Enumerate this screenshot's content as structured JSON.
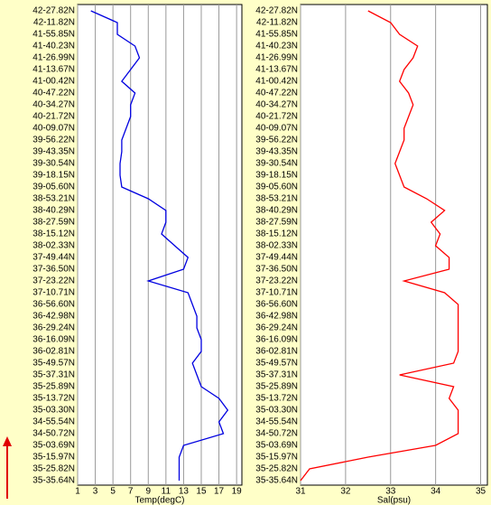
{
  "chart_data": [
    {
      "type": "line",
      "xlabel": "Temp(degC)",
      "categories": [
        "42-27.82N",
        "42-11.82N",
        "41-55.85N",
        "41-40.23N",
        "41-26.99N",
        "41-13.67N",
        "41-00.42N",
        "40-47.22N",
        "40-34.27N",
        "40-21.72N",
        "40-09.07N",
        "39-56.22N",
        "39-43.35N",
        "39-30.54N",
        "39-18.15N",
        "39-05.60N",
        "38-53.21N",
        "38-40.29N",
        "38-27.59N",
        "38-15.12N",
        "38-02.33N",
        "37-49.44N",
        "37-36.50N",
        "37-23.22N",
        "37-10.71N",
        "36-56.60N",
        "36-42.98N",
        "36-29.24N",
        "36-16.09N",
        "36-02.81N",
        "35-49.57N",
        "35-37.31N",
        "35-25.89N",
        "35-13.72N",
        "35-03.30N",
        "34-55.54N",
        "34-50.72N",
        "35-03.69N",
        "35-15.97N",
        "35-25.82N",
        "35-35.64N"
      ],
      "series": [
        {
          "name": "Temp",
          "color": "#0000e0",
          "values": [
            2.5,
            5.5,
            5.5,
            7.5,
            8,
            7,
            6,
            7.5,
            7,
            7,
            6.5,
            6,
            6,
            5.8,
            5.8,
            6,
            9,
            11,
            11,
            10.5,
            12,
            13.5,
            13,
            9,
            13.5,
            14,
            14.5,
            14.5,
            15,
            15,
            14,
            14.5,
            15,
            17,
            18,
            17,
            17.5,
            13,
            12.5,
            12.5,
            12.5
          ]
        }
      ],
      "xlim": [
        1,
        19.6
      ],
      "xticks": [
        1,
        3,
        5,
        7,
        9,
        11,
        13,
        15,
        17,
        19
      ],
      "grid": true
    },
    {
      "type": "line",
      "xlabel": "Sal(psu)",
      "categories": [
        "42-27.82N",
        "42-11.82N",
        "41-55.85N",
        "41-40.23N",
        "41-26.99N",
        "41-13.67N",
        "41-00.42N",
        "40-47.22N",
        "40-34.27N",
        "40-21.72N",
        "40-09.07N",
        "39-56.22N",
        "39-43.35N",
        "39-30.54N",
        "39-18.15N",
        "39-05.60N",
        "38-53.21N",
        "38-40.29N",
        "38-27.59N",
        "38-15.12N",
        "38-02.33N",
        "37-49.44N",
        "37-36.50N",
        "37-23.22N",
        "37-10.71N",
        "36-56.60N",
        "36-42.98N",
        "36-29.24N",
        "36-16.09N",
        "36-02.81N",
        "35-49.57N",
        "35-37.31N",
        "35-25.89N",
        "35-13.72N",
        "35-03.30N",
        "34-55.54N",
        "34-50.72N",
        "35-03.69N",
        "35-15.97N",
        "35-25.82N",
        "35-35.64N"
      ],
      "series": [
        {
          "name": "Sal",
          "color": "#ff0000",
          "values": [
            32.5,
            33,
            33.2,
            33.6,
            33.5,
            33.3,
            33.2,
            33.4,
            33.5,
            33.4,
            33.3,
            33.3,
            33.2,
            33.1,
            33.2,
            33.3,
            33.8,
            34.2,
            33.9,
            34.1,
            34,
            34.3,
            34.3,
            33.3,
            34.2,
            34.5,
            34.5,
            34.5,
            34.5,
            34.5,
            34.4,
            33.2,
            34.4,
            34.3,
            34.5,
            34.5,
            34.5,
            34,
            32.5,
            31.2,
            31
          ]
        }
      ],
      "xlim": [
        31,
        35.15
      ],
      "xticks": [
        31,
        32,
        33,
        34,
        35
      ],
      "grid": true
    }
  ]
}
